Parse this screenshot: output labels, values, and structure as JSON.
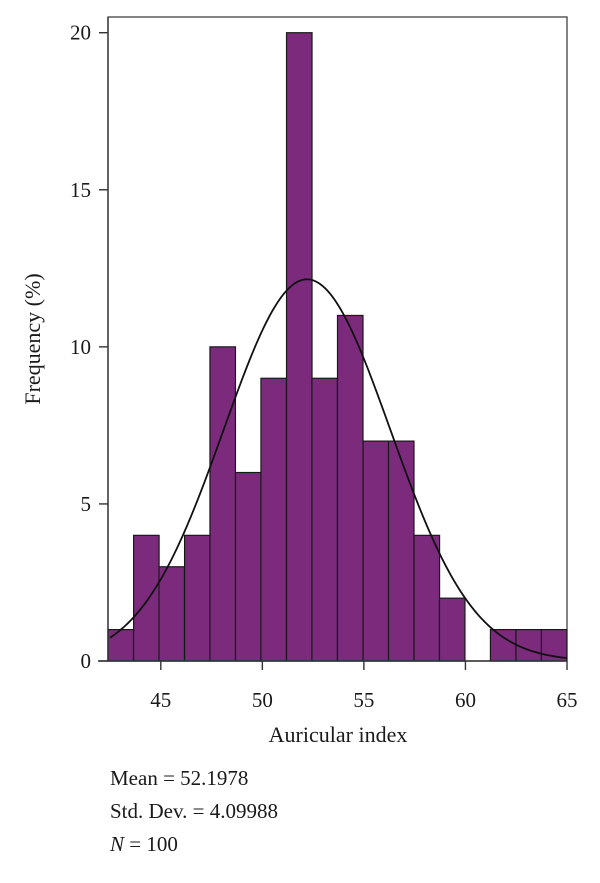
{
  "chart_data": {
    "type": "bar",
    "title": "",
    "xlabel": "Auricular index",
    "ylabel": "Frequency (%)",
    "xlim": [
      42.4,
      65
    ],
    "ylim": [
      0,
      20.5
    ],
    "xticks": [
      45,
      50,
      55,
      60,
      65
    ],
    "yticks": [
      0,
      5,
      10,
      15,
      20
    ],
    "bin_width": 1.256,
    "bins": [
      {
        "x0": 42.4,
        "value": 1
      },
      {
        "x0": 43.66,
        "value": 4
      },
      {
        "x0": 44.91,
        "value": 3
      },
      {
        "x0": 46.17,
        "value": 4
      },
      {
        "x0": 47.42,
        "value": 10
      },
      {
        "x0": 48.68,
        "value": 6
      },
      {
        "x0": 49.93,
        "value": 9
      },
      {
        "x0": 51.19,
        "value": 20
      },
      {
        "x0": 52.44,
        "value": 9
      },
      {
        "x0": 53.7,
        "value": 11
      },
      {
        "x0": 54.96,
        "value": 7
      },
      {
        "x0": 56.21,
        "value": 7
      },
      {
        "x0": 57.47,
        "value": 4
      },
      {
        "x0": 58.72,
        "value": 2
      },
      {
        "x0": 59.98,
        "value": 0
      },
      {
        "x0": 61.23,
        "value": 1
      },
      {
        "x0": 62.49,
        "value": 1
      },
      {
        "x0": 63.74,
        "value": 1
      }
    ],
    "normal_curve": {
      "mean": 52.1978,
      "sd": 4.09988,
      "peak": 12.15
    },
    "bar_color": "#7b2a7c",
    "bar_edge_color": "#1a1a1a"
  },
  "stats": {
    "mean_label": "Mean = 52.1978",
    "sd_label": "Std. Dev. = 4.09988",
    "n_symbol": "N",
    "n_rest": " = 100"
  }
}
